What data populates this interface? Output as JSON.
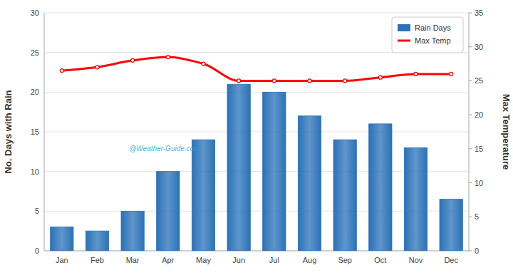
{
  "chart_data": {
    "type": "bar",
    "categories": [
      "Jan",
      "Feb",
      "Mar",
      "Apr",
      "May",
      "Jun",
      "Jul",
      "Aug",
      "Sep",
      "Oct",
      "Nov",
      "Dec"
    ],
    "series": [
      {
        "name": "Rain Days",
        "type": "bar",
        "color": "#2a72b8",
        "values": [
          3,
          2.5,
          5,
          10,
          14,
          21,
          20,
          17,
          14,
          16,
          13,
          6.5
        ]
      },
      {
        "name": "Max Temp",
        "type": "line",
        "axis": "y2",
        "color": "red",
        "marker": "circle",
        "values": [
          26.5,
          27.0,
          28.0,
          28.5,
          27.5,
          25.0,
          25.0,
          25.0,
          25.0,
          25.5,
          26.0,
          26.0
        ]
      }
    ],
    "ylabel": "No. Days with Rain",
    "y2label": "Max Temperature",
    "ylim": [
      0,
      30
    ],
    "yticks": [
      0,
      5,
      10,
      15,
      20,
      25,
      30
    ],
    "y2lim": [
      0,
      35
    ],
    "y2ticks": [
      0,
      5,
      10,
      15,
      20,
      25,
      30,
      35
    ],
    "annotations": [
      "@Weather-Guide.com"
    ],
    "grid": true,
    "legend": "upper right"
  }
}
